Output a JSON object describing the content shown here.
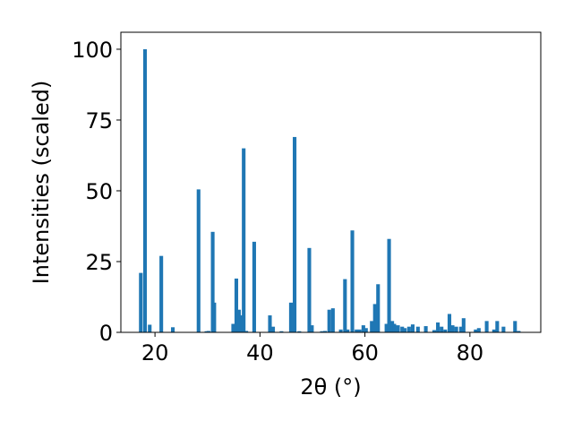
{
  "chart_data": {
    "type": "bar",
    "xlabel": "2θ (°)",
    "ylabel": "Intensities (scaled)",
    "xlim": [
      13.5,
      93.5
    ],
    "ylim": [
      0,
      106
    ],
    "xticks": [
      20,
      40,
      60,
      80
    ],
    "yticks": [
      0,
      25,
      50,
      75,
      100
    ],
    "bar_width": 0.7,
    "color": "#1f77b4",
    "grid": false,
    "x": [
      17.3,
      18.1,
      19.0,
      21.2,
      23.4,
      28.3,
      29.8,
      30.2,
      31.0,
      31.3,
      34.9,
      35.5,
      36.0,
      36.4,
      36.9,
      37.4,
      38.9,
      41.9,
      42.5,
      44.1,
      45.9,
      46.6,
      47.5,
      49.4,
      49.9,
      51.8,
      52.4,
      53.2,
      53.9,
      55.4,
      56.2,
      56.7,
      57.6,
      58.4,
      59.0,
      59.7,
      60.2,
      61.3,
      61.9,
      62.5,
      64.1,
      64.6,
      65.2,
      65.6,
      66.3,
      67.1,
      67.6,
      68.4,
      69.1,
      70.1,
      71.6,
      73.2,
      73.9,
      74.6,
      75.3,
      76.1,
      76.7,
      77.4,
      78.3,
      78.8,
      81.1,
      81.7,
      83.2,
      84.6,
      85.2,
      86.4,
      88.6,
      89.3
    ],
    "values": [
      21,
      100,
      2.7,
      27,
      1.8,
      50.5,
      0.4,
      0.5,
      35.5,
      10.5,
      3.0,
      19.0,
      8.0,
      6.0,
      65.0,
      0.5,
      32.0,
      6.0,
      2.0,
      0.4,
      10.5,
      69.0,
      0.4,
      29.8,
      2.5,
      0.4,
      0.5,
      8.0,
      8.5,
      1.0,
      18.8,
      1.0,
      36.0,
      1.0,
      1.0,
      2.5,
      1.5,
      4.0,
      10.0,
      17.0,
      3.0,
      33.0,
      4.0,
      3.0,
      2.5,
      2.0,
      1.5,
      2.0,
      2.8,
      2.0,
      2.2,
      0.8,
      3.5,
      2.0,
      1.0,
      6.5,
      2.5,
      2.0,
      2.0,
      5.0,
      1.0,
      1.5,
      4.0,
      1.0,
      4.0,
      2.0,
      4.0,
      0.5
    ]
  }
}
